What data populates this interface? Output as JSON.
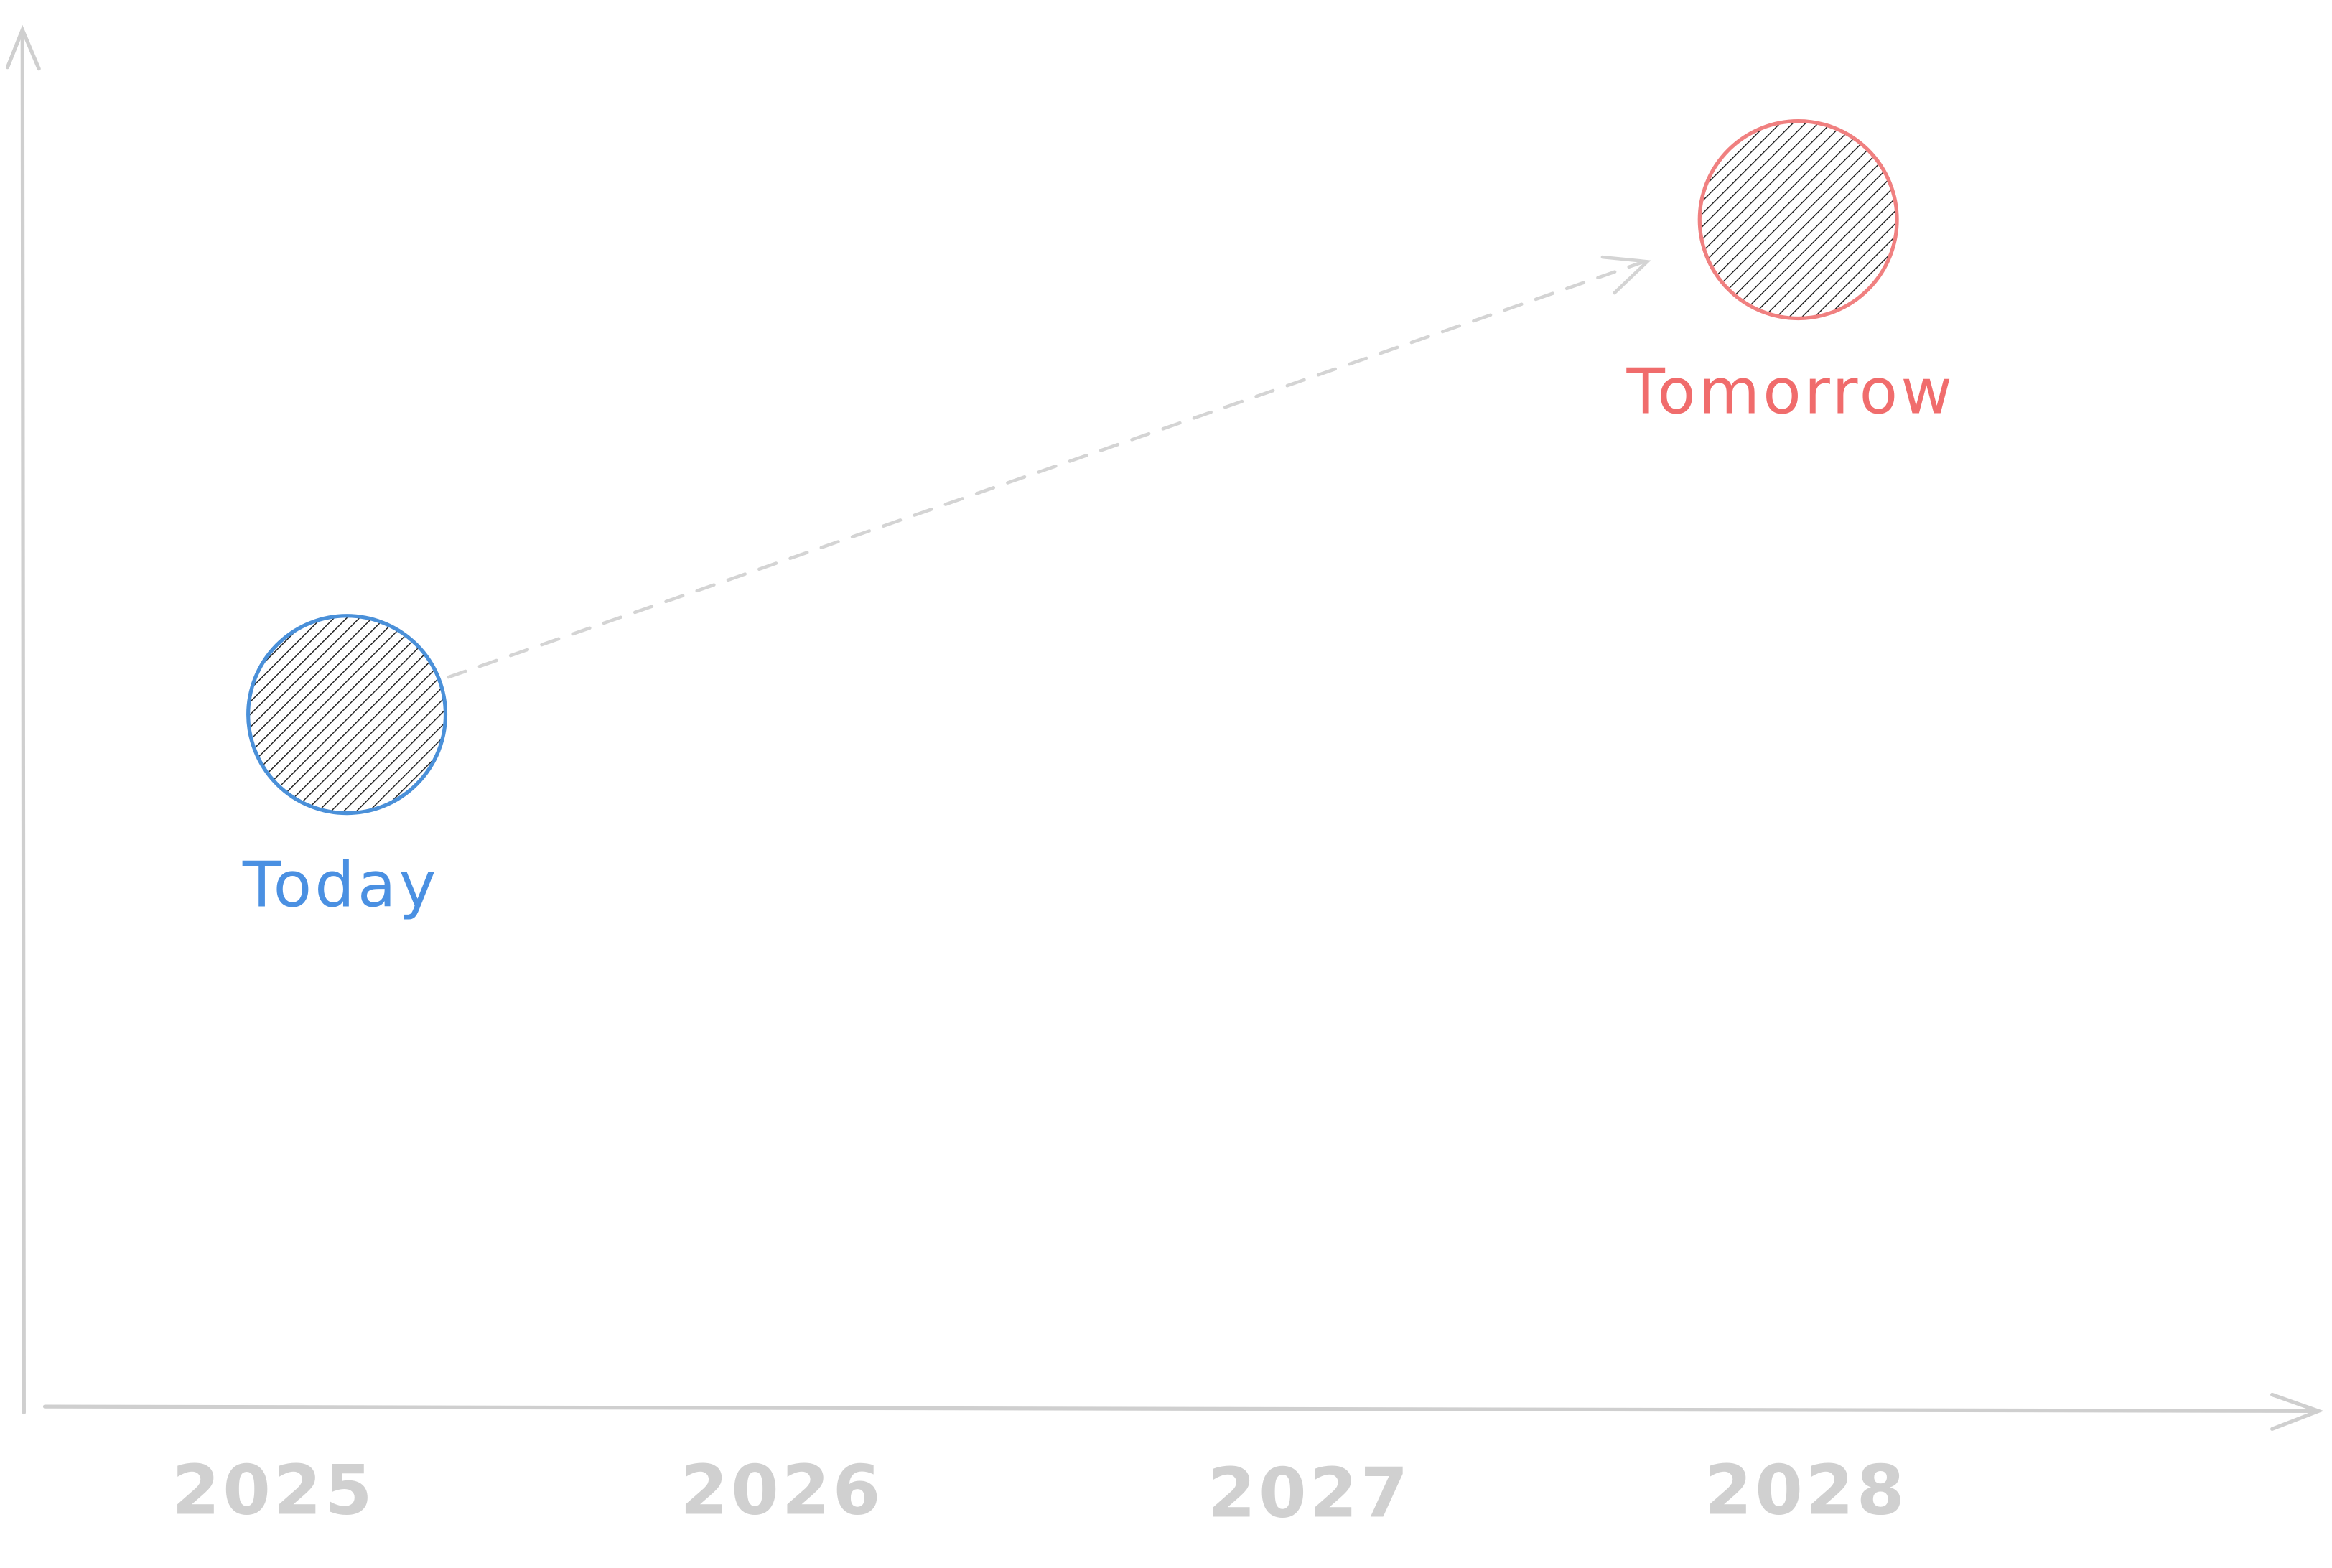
{
  "x_axis": {
    "labels": [
      "2025",
      "2026",
      "2027",
      "2028"
    ]
  },
  "nodes": [
    {
      "label": "Today"
    },
    {
      "label": "Tomorrow"
    }
  ]
}
